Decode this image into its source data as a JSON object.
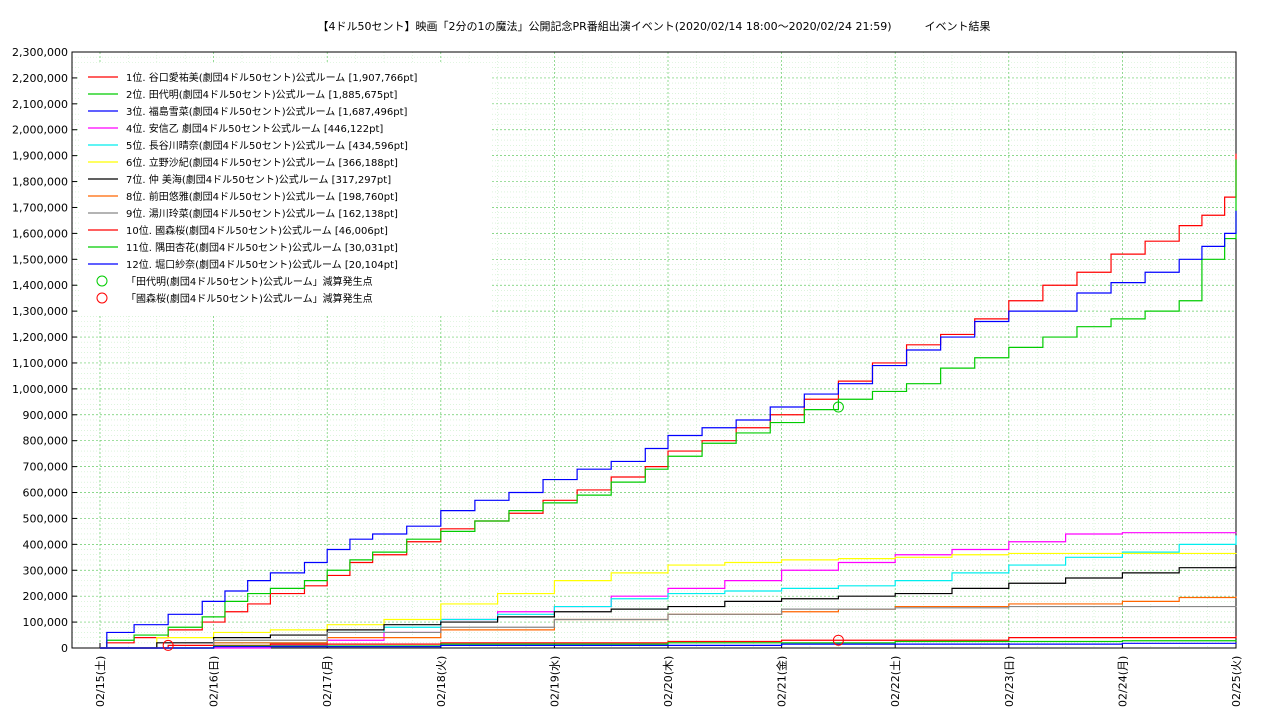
{
  "chart_data": {
    "type": "line",
    "title": "【4ドル50セント】映画「2分の1の魔法」公開記念PR番組出演イベント(2020/02/14 18:00～2020/02/24 21:59)　　　イベント結果",
    "xlabel": "",
    "ylabel": "",
    "ylim": [
      0,
      2300000
    ],
    "xlim_days": [
      0,
      10.25
    ],
    "grid": true,
    "legend_position": "top-left",
    "x_ticks": [
      "02/15(土)",
      "02/16(日)",
      "02/17(月)",
      "02/18(火)",
      "02/19(水)",
      "02/20(木)",
      "02/21(金)",
      "02/22(土)",
      "02/23(日)",
      "02/24(月)",
      "02/25(火)"
    ],
    "y_ticks": [
      "0",
      "100,000",
      "200,000",
      "300,000",
      "400,000",
      "500,000",
      "600,000",
      "700,000",
      "800,000",
      "900,000",
      "1,000,000",
      "1,100,000",
      "1,200,000",
      "1,300,000",
      "1,400,000",
      "1,500,000",
      "1,600,000",
      "1,700,000",
      "1,800,000",
      "1,900,000",
      "2,000,000",
      "2,100,000",
      "2,200,000",
      "2,300,000"
    ],
    "series": [
      {
        "name": "1位. 谷口愛祐美(劇団4ドル50セント)公式ルーム [1,907,766pt]",
        "color": "#ff0000",
        "points": [
          [
            0,
            0
          ],
          [
            0.06,
            20000
          ],
          [
            0.3,
            40000
          ],
          [
            0.6,
            70000
          ],
          [
            0.9,
            100000
          ],
          [
            1.1,
            140000
          ],
          [
            1.3,
            170000
          ],
          [
            1.5,
            210000
          ],
          [
            1.8,
            240000
          ],
          [
            2.0,
            280000
          ],
          [
            2.2,
            330000
          ],
          [
            2.4,
            360000
          ],
          [
            2.7,
            410000
          ],
          [
            3.0,
            460000
          ],
          [
            3.3,
            490000
          ],
          [
            3.6,
            520000
          ],
          [
            3.9,
            570000
          ],
          [
            4.2,
            610000
          ],
          [
            4.5,
            660000
          ],
          [
            4.8,
            700000
          ],
          [
            5.0,
            760000
          ],
          [
            5.3,
            800000
          ],
          [
            5.6,
            850000
          ],
          [
            5.9,
            900000
          ],
          [
            6.2,
            960000
          ],
          [
            6.5,
            1030000
          ],
          [
            6.8,
            1100000
          ],
          [
            7.1,
            1170000
          ],
          [
            7.4,
            1210000
          ],
          [
            7.7,
            1270000
          ],
          [
            8.0,
            1340000
          ],
          [
            8.3,
            1400000
          ],
          [
            8.6,
            1450000
          ],
          [
            8.9,
            1520000
          ],
          [
            9.2,
            1570000
          ],
          [
            9.5,
            1630000
          ],
          [
            9.7,
            1670000
          ],
          [
            9.9,
            1740000
          ],
          [
            10.0,
            1900000
          ],
          [
            10.25,
            1907766
          ]
        ]
      },
      {
        "name": "2位. 田代明(劇団4ドル50セント)公式ルーム [1,885,675pt]",
        "color": "#00cc00",
        "points": [
          [
            0,
            0
          ],
          [
            0.06,
            30000
          ],
          [
            0.3,
            50000
          ],
          [
            0.6,
            80000
          ],
          [
            0.9,
            120000
          ],
          [
            1.1,
            180000
          ],
          [
            1.3,
            210000
          ],
          [
            1.5,
            230000
          ],
          [
            1.8,
            260000
          ],
          [
            2.0,
            300000
          ],
          [
            2.2,
            340000
          ],
          [
            2.4,
            370000
          ],
          [
            2.7,
            420000
          ],
          [
            3.0,
            450000
          ],
          [
            3.3,
            490000
          ],
          [
            3.6,
            530000
          ],
          [
            3.9,
            560000
          ],
          [
            4.2,
            590000
          ],
          [
            4.5,
            640000
          ],
          [
            4.8,
            690000
          ],
          [
            5.0,
            740000
          ],
          [
            5.3,
            790000
          ],
          [
            5.6,
            830000
          ],
          [
            5.9,
            870000
          ],
          [
            6.2,
            920000
          ],
          [
            6.5,
            960000
          ],
          [
            6.8,
            990000
          ],
          [
            7.1,
            1020000
          ],
          [
            7.4,
            1080000
          ],
          [
            7.7,
            1120000
          ],
          [
            8.0,
            1160000
          ],
          [
            8.3,
            1200000
          ],
          [
            8.6,
            1240000
          ],
          [
            8.9,
            1270000
          ],
          [
            9.2,
            1300000
          ],
          [
            9.5,
            1340000
          ],
          [
            9.7,
            1500000
          ],
          [
            9.9,
            1580000
          ],
          [
            10.07,
            1880000
          ],
          [
            10.25,
            1885675
          ]
        ]
      },
      {
        "name": "3位. 福島雪菜(劇団4ドル50セント)公式ルーム [1,687,496pt]",
        "color": "#0000ff",
        "points": [
          [
            0,
            0
          ],
          [
            0.06,
            60000
          ],
          [
            0.3,
            90000
          ],
          [
            0.6,
            130000
          ],
          [
            0.9,
            180000
          ],
          [
            1.1,
            220000
          ],
          [
            1.3,
            260000
          ],
          [
            1.5,
            290000
          ],
          [
            1.8,
            330000
          ],
          [
            2.0,
            380000
          ],
          [
            2.2,
            420000
          ],
          [
            2.4,
            440000
          ],
          [
            2.7,
            470000
          ],
          [
            3.0,
            530000
          ],
          [
            3.3,
            570000
          ],
          [
            3.6,
            600000
          ],
          [
            3.9,
            650000
          ],
          [
            4.2,
            690000
          ],
          [
            4.5,
            720000
          ],
          [
            4.8,
            770000
          ],
          [
            5.0,
            820000
          ],
          [
            5.3,
            850000
          ],
          [
            5.6,
            880000
          ],
          [
            5.9,
            930000
          ],
          [
            6.2,
            980000
          ],
          [
            6.5,
            1020000
          ],
          [
            6.8,
            1090000
          ],
          [
            7.1,
            1150000
          ],
          [
            7.4,
            1200000
          ],
          [
            7.7,
            1260000
          ],
          [
            8.0,
            1300000
          ],
          [
            8.3,
            1300000
          ],
          [
            8.6,
            1370000
          ],
          [
            8.9,
            1410000
          ],
          [
            9.2,
            1450000
          ],
          [
            9.5,
            1500000
          ],
          [
            9.7,
            1550000
          ],
          [
            9.9,
            1600000
          ],
          [
            10.07,
            1680000
          ],
          [
            10.25,
            1687496
          ]
        ]
      },
      {
        "name": "4位. 安信乙 劇団4ドル50セント公式ルーム [446,122pt]",
        "color": "#ff00ff",
        "points": [
          [
            0,
            0
          ],
          [
            1.5,
            10000
          ],
          [
            2.0,
            30000
          ],
          [
            2.5,
            60000
          ],
          [
            3.0,
            110000
          ],
          [
            3.5,
            140000
          ],
          [
            4.0,
            160000
          ],
          [
            4.5,
            200000
          ],
          [
            5.0,
            230000
          ],
          [
            5.5,
            260000
          ],
          [
            6.0,
            300000
          ],
          [
            6.5,
            330000
          ],
          [
            7.0,
            360000
          ],
          [
            7.5,
            380000
          ],
          [
            8.0,
            410000
          ],
          [
            8.5,
            440000
          ],
          [
            9.0,
            445000
          ],
          [
            10.25,
            446122
          ]
        ]
      },
      {
        "name": "5位. 長谷川晴奈(劇団4ドル50セント)公式ルーム [434,596pt]",
        "color": "#00eeee",
        "points": [
          [
            0,
            0
          ],
          [
            1.0,
            20000
          ],
          [
            2.0,
            60000
          ],
          [
            2.5,
            80000
          ],
          [
            3.0,
            110000
          ],
          [
            3.5,
            130000
          ],
          [
            4.0,
            160000
          ],
          [
            4.5,
            190000
          ],
          [
            5.0,
            210000
          ],
          [
            5.5,
            220000
          ],
          [
            6.0,
            230000
          ],
          [
            6.5,
            240000
          ],
          [
            7.0,
            260000
          ],
          [
            7.5,
            290000
          ],
          [
            8.0,
            320000
          ],
          [
            8.5,
            350000
          ],
          [
            9.0,
            370000
          ],
          [
            9.5,
            400000
          ],
          [
            10.0,
            430000
          ],
          [
            10.25,
            434596
          ]
        ]
      },
      {
        "name": "6位. 立野沙紀(劇団4ドル50セント)公式ルーム [366,188pt]",
        "color": "#ffff00",
        "points": [
          [
            0,
            0
          ],
          [
            0.5,
            40000
          ],
          [
            1.0,
            60000
          ],
          [
            1.5,
            70000
          ],
          [
            2.0,
            90000
          ],
          [
            2.5,
            110000
          ],
          [
            3.0,
            170000
          ],
          [
            3.5,
            210000
          ],
          [
            4.0,
            260000
          ],
          [
            4.5,
            290000
          ],
          [
            5.0,
            320000
          ],
          [
            5.5,
            330000
          ],
          [
            6.0,
            340000
          ],
          [
            6.5,
            345000
          ],
          [
            7.0,
            350000
          ],
          [
            7.5,
            360000
          ],
          [
            8.0,
            365000
          ],
          [
            10.25,
            366188
          ]
        ]
      },
      {
        "name": "7位. 仲 美海(劇団4ドル50セント)公式ルーム [317,297pt]",
        "color": "#000000",
        "points": [
          [
            0,
            0
          ],
          [
            0.5,
            20000
          ],
          [
            1.0,
            40000
          ],
          [
            1.5,
            50000
          ],
          [
            2.0,
            70000
          ],
          [
            2.5,
            90000
          ],
          [
            3.0,
            100000
          ],
          [
            3.5,
            120000
          ],
          [
            4.0,
            140000
          ],
          [
            4.5,
            150000
          ],
          [
            5.0,
            160000
          ],
          [
            5.5,
            180000
          ],
          [
            6.0,
            190000
          ],
          [
            6.5,
            200000
          ],
          [
            7.0,
            210000
          ],
          [
            7.5,
            230000
          ],
          [
            8.0,
            250000
          ],
          [
            8.5,
            270000
          ],
          [
            9.0,
            290000
          ],
          [
            9.5,
            310000
          ],
          [
            10.25,
            317297
          ]
        ]
      },
      {
        "name": "8位. 前田悠雅(劇団4ドル50セント)公式ルーム [198,760pt]",
        "color": "#ff6600",
        "points": [
          [
            0,
            0
          ],
          [
            1.0,
            20000
          ],
          [
            2.0,
            40000
          ],
          [
            3.0,
            70000
          ],
          [
            4.0,
            110000
          ],
          [
            5.0,
            130000
          ],
          [
            6.0,
            140000
          ],
          [
            6.5,
            150000
          ],
          [
            7.0,
            160000
          ],
          [
            8.0,
            170000
          ],
          [
            9.0,
            180000
          ],
          [
            9.5,
            195000
          ],
          [
            10.25,
            198760
          ]
        ]
      },
      {
        "name": "9位. 湯川玲菜(劇団4ドル50セント)公式ルーム [162,138pt]",
        "color": "#888888",
        "points": [
          [
            0,
            0
          ],
          [
            1.0,
            30000
          ],
          [
            2.0,
            60000
          ],
          [
            3.0,
            80000
          ],
          [
            4.0,
            110000
          ],
          [
            5.0,
            130000
          ],
          [
            6.0,
            150000
          ],
          [
            7.0,
            155000
          ],
          [
            8.0,
            160000
          ],
          [
            10.25,
            162138
          ]
        ]
      },
      {
        "name": "10位. 國森桜(劇団4ドル50セント)公式ルーム [46,006pt]",
        "color": "#ff0000",
        "points": [
          [
            0,
            0
          ],
          [
            0.6,
            10000
          ],
          [
            1.5,
            15000
          ],
          [
            3.0,
            20000
          ],
          [
            5.0,
            25000
          ],
          [
            6.0,
            30000
          ],
          [
            8.0,
            40000
          ],
          [
            10.25,
            46006
          ]
        ]
      },
      {
        "name": "11位. 隅田杏花(劇団4ドル50セント)公式ルーム [30,031pt]",
        "color": "#00cc00",
        "points": [
          [
            0,
            0
          ],
          [
            1.0,
            8000
          ],
          [
            3.0,
            15000
          ],
          [
            5.0,
            20000
          ],
          [
            7.0,
            25000
          ],
          [
            9.0,
            28000
          ],
          [
            10.25,
            30031
          ]
        ]
      },
      {
        "name": "12位. 堀口紗奈(劇団4ドル50セント)公式ルーム [20,104pt]",
        "color": "#0000ff",
        "points": [
          [
            0,
            0
          ],
          [
            1.0,
            5000
          ],
          [
            3.0,
            10000
          ],
          [
            6.0,
            15000
          ],
          [
            9.0,
            18000
          ],
          [
            10.25,
            20104
          ]
        ]
      }
    ],
    "markers": [
      {
        "name": "「田代明(劇団4ドル50セント)公式ルーム」減算発生点",
        "color": "#00cc00",
        "x": 6.5,
        "y": 930000
      },
      {
        "name": "「國森桜(劇団4ドル50セント)公式ルーム」減算発生点",
        "color": "#ff0000",
        "x": 6.5,
        "y": 30000
      }
    ],
    "extra_markers": [
      {
        "color": "#ff0000",
        "x": 0.6,
        "y": 10000
      }
    ]
  }
}
